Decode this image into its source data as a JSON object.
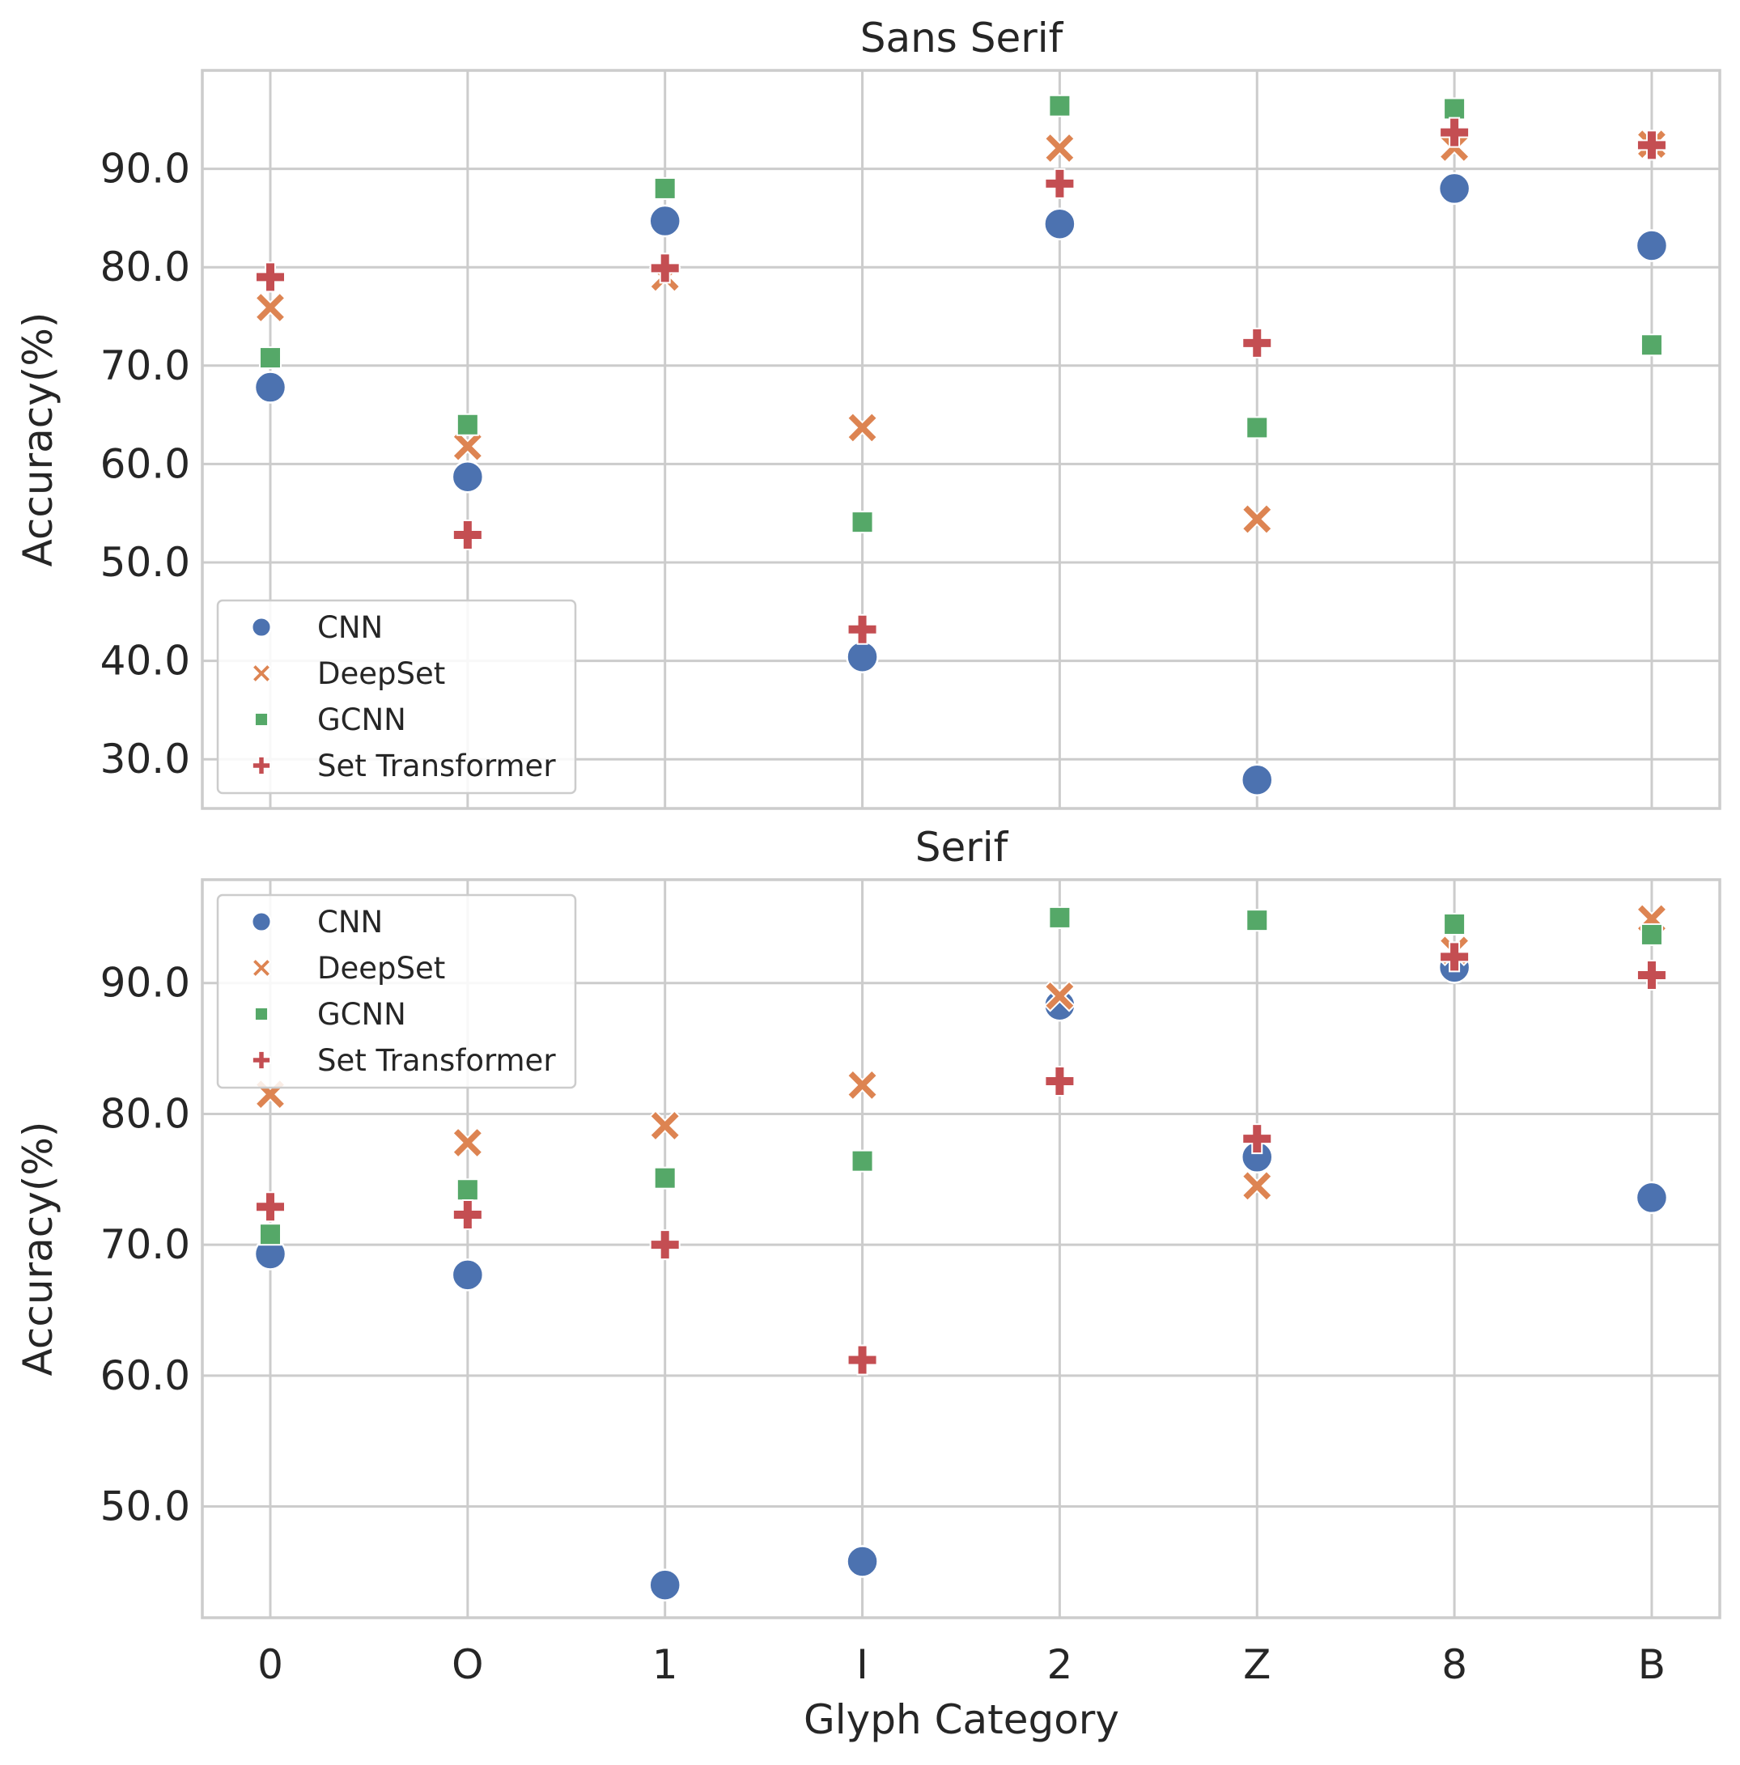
{
  "chart_data": [
    {
      "type": "scatter",
      "title": "Sans Serif",
      "xlabel": "",
      "ylabel": "Accuracy(%)",
      "categories": [
        "0",
        "O",
        "1",
        "I",
        "2",
        "Z",
        "8",
        "B"
      ],
      "yticks": [
        "30.0",
        "40.0",
        "50.0",
        "60.0",
        "70.0",
        "80.0",
        "90.0"
      ],
      "ylim": [
        25,
        100
      ],
      "grid": true,
      "legend_position": "lower-left",
      "series": [
        {
          "name": "CNN",
          "marker": "circle",
          "color": "#4c72b0",
          "values": [
            67.8,
            58.7,
            84.7,
            40.4,
            84.4,
            27.9,
            88.0,
            82.2
          ]
        },
        {
          "name": "DeepSet",
          "marker": "x",
          "color": "#dd8452",
          "values": [
            75.9,
            61.8,
            79.0,
            63.7,
            92.1,
            54.4,
            92.2,
            92.5
          ]
        },
        {
          "name": "GCNN",
          "marker": "square",
          "color": "#55a868",
          "values": [
            70.8,
            64.0,
            88.0,
            54.1,
            96.4,
            63.7,
            96.1,
            72.1
          ]
        },
        {
          "name": "Set Transformer",
          "marker": "plus",
          "color": "#c44e52",
          "values": [
            79.0,
            52.8,
            79.9,
            43.2,
            88.5,
            72.3,
            93.7,
            92.4
          ]
        }
      ]
    },
    {
      "type": "scatter",
      "title": "Serif",
      "xlabel": "Glyph Category",
      "ylabel": "Accuracy(%)",
      "categories": [
        "0",
        "O",
        "1",
        "I",
        "2",
        "Z",
        "8",
        "B"
      ],
      "yticks": [
        "50.0",
        "60.0",
        "70.0",
        "80.0",
        "90.0"
      ],
      "ylim": [
        41.5,
        97.9
      ],
      "grid": true,
      "legend_position": "upper-left",
      "series": [
        {
          "name": "CNN",
          "marker": "circle",
          "color": "#4c72b0",
          "values": [
            69.3,
            67.7,
            44.0,
            45.8,
            88.3,
            76.7,
            91.2,
            73.6
          ]
        },
        {
          "name": "DeepSet",
          "marker": "x",
          "color": "#dd8452",
          "values": [
            81.5,
            77.8,
            79.1,
            82.2,
            89.0,
            74.5,
            92.5,
            94.9
          ]
        },
        {
          "name": "GCNN",
          "marker": "square",
          "color": "#55a868",
          "values": [
            70.8,
            74.2,
            75.1,
            76.4,
            95.0,
            94.8,
            94.5,
            93.7
          ]
        },
        {
          "name": "Set Transformer",
          "marker": "plus",
          "color": "#c44e52",
          "values": [
            72.9,
            72.3,
            70.0,
            61.2,
            82.5,
            78.1,
            92.0,
            90.6
          ]
        }
      ]
    }
  ]
}
